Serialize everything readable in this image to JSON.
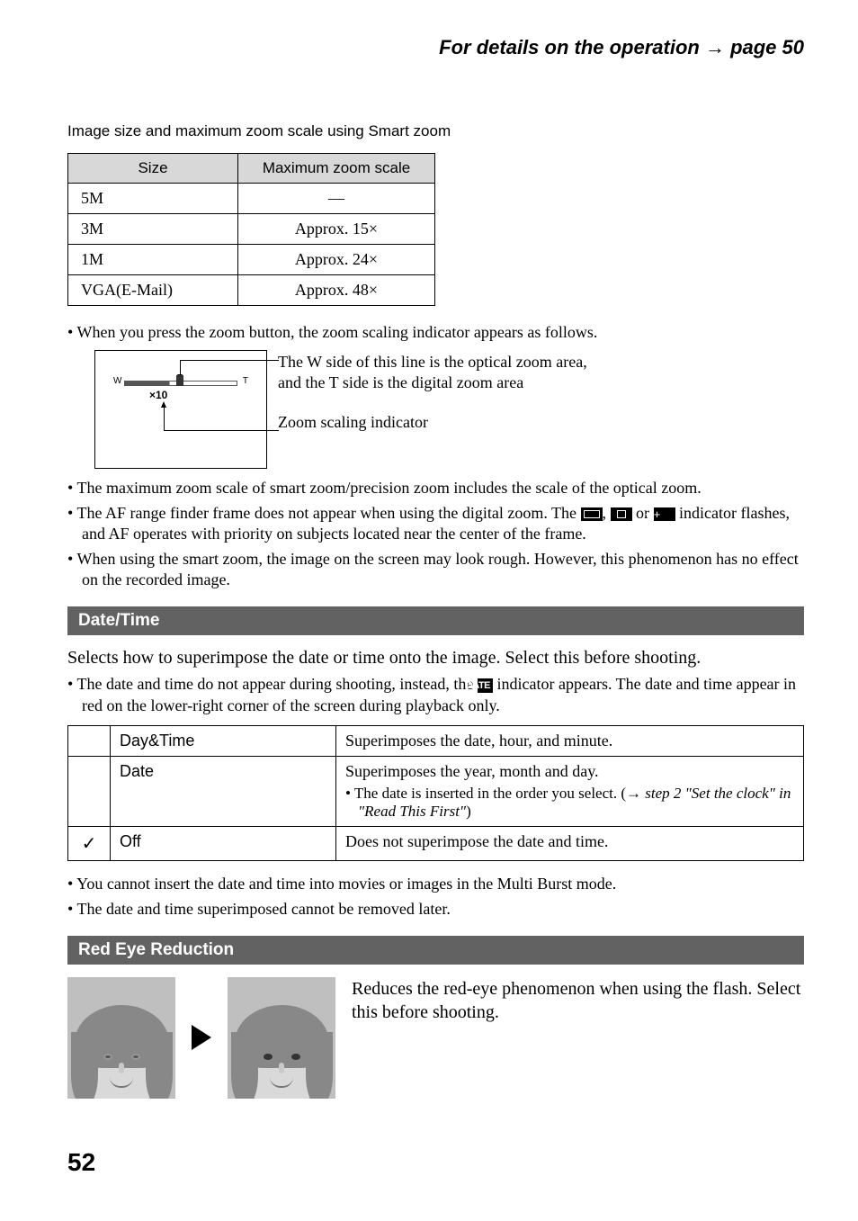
{
  "header": {
    "text_prefix": "For details on the operation ",
    "arrow": "→",
    "text_suffix": " page 50"
  },
  "smart_zoom": {
    "lead": "Image size and maximum zoom scale using Smart zoom",
    "th_size": "Size",
    "th_scale": "Maximum zoom scale",
    "rows": [
      {
        "size": "5M",
        "scale": "—"
      },
      {
        "size": "3M",
        "scale": "Approx. 15×"
      },
      {
        "size": "1M",
        "scale": "Approx. 24×"
      },
      {
        "size": "VGA(E-Mail)",
        "scale": "Approx. 48×"
      }
    ]
  },
  "zoom_indicator": {
    "bullet": "When you press the zoom button, the zoom scaling indicator appears as follows.",
    "w": "W",
    "t": "T",
    "x10": "×10",
    "label1_line1": "The W side of this line is the optical zoom area,",
    "label1_line2": "and the T side is the digital zoom area",
    "label2": "Zoom scaling indicator"
  },
  "zoom_notes": [
    "The maximum zoom scale of smart zoom/precision zoom includes the scale of the optical zoom.",
    "__AF__",
    "When using the smart zoom, the image on the screen may look rough. However, this phenomenon has no effect on the recorded image."
  ],
  "af_note": {
    "pre": "The AF range finder frame does not appear when using the digital zoom. The ",
    "mid1": ", ",
    "mid2": " or ",
    "post": " indicator flashes, and AF operates with priority on subjects located near the center of the frame."
  },
  "date_time": {
    "heading": "Date/Time",
    "intro": "Selects how to superimpose the date or time onto the image. Select this before shooting.",
    "note_pre": "The date and time do not appear during shooting, instead, the ",
    "date_icon": "DATE",
    "note_post": " indicator appears. The date and time appear in red on the lower-right corner of the screen during playback only.",
    "rows": [
      {
        "check": "",
        "option": "Day&Time",
        "desc": "Superimposes the date, hour, and minute.",
        "sub": null
      },
      {
        "check": "",
        "option": "Date",
        "desc": "Superimposes the year, month and day.",
        "sub_pre": "The date is inserted in the order you select. (",
        "sub_arrow": "→",
        "sub_it": " step 2 \"Set the clock\" in \"Read This First\"",
        "sub_post": ")"
      },
      {
        "check": "✓",
        "option": "Off",
        "desc": "Does not superimpose the date and time.",
        "sub": null
      }
    ],
    "after": [
      "You cannot insert the date and time into movies or images in the Multi Burst mode.",
      "The date and time superimposed cannot be removed later."
    ]
  },
  "red_eye": {
    "heading": "Red Eye Reduction",
    "text": "Reduces the red-eye phenomenon when using the flash. Select this before shooting."
  },
  "page_number": "52"
}
